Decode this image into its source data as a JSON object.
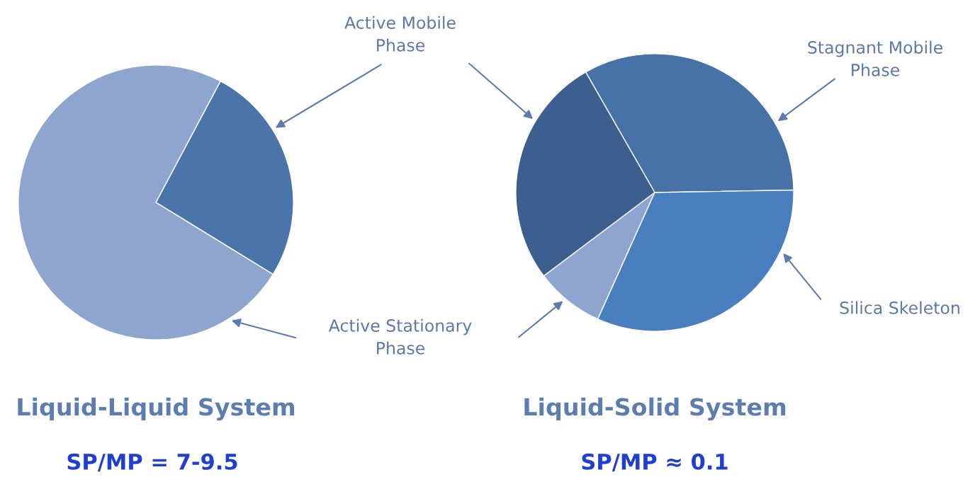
{
  "chart_data": [
    {
      "type": "pie",
      "title": "Liquid-Liquid System",
      "subtitle": "SP/MP = 7-9.5",
      "categories": [
        "Active Mobile\nPhase",
        "Active Stationary\nPhase"
      ],
      "values": [
        26,
        74
      ],
      "colors": [
        "#4a74aa",
        "#8ea6cf"
      ]
    },
    {
      "type": "pie",
      "title": "Liquid-Solid System",
      "subtitle": "SP/MP ≈ 0.1",
      "categories": [
        "Stagnant Mobile\nPhase",
        null,
        null,
        "Silica Skeleton"
      ],
      "values": [
        33,
        27,
        8,
        32
      ],
      "colors": [
        "#4672a8",
        "#3d5f8f",
        "#8ea6cf",
        "#4a7fbf"
      ]
    }
  ]
}
